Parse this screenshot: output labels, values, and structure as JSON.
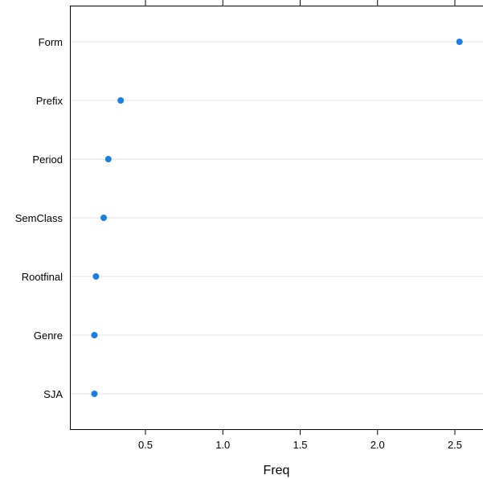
{
  "chart_data": {
    "type": "scatter",
    "subtype": "dotplot",
    "title": "",
    "xlabel": "Freq",
    "ylabel": "",
    "xlim": [
      0.0,
      2.7
    ],
    "xticks": [
      0.5,
      1.0,
      1.5,
      2.0,
      2.5
    ],
    "xtick_labels": [
      "0.5",
      "1.0",
      "1.5",
      "2.0",
      "2.5"
    ],
    "grid": "horizontal",
    "point_color": "#1a7fe0",
    "categories": [
      "Form",
      "Prefix",
      "Period",
      "SemClass",
      "Rootfinal",
      "Genre",
      "SJA"
    ],
    "values": [
      2.53,
      0.34,
      0.26,
      0.23,
      0.18,
      0.17,
      0.17
    ]
  }
}
